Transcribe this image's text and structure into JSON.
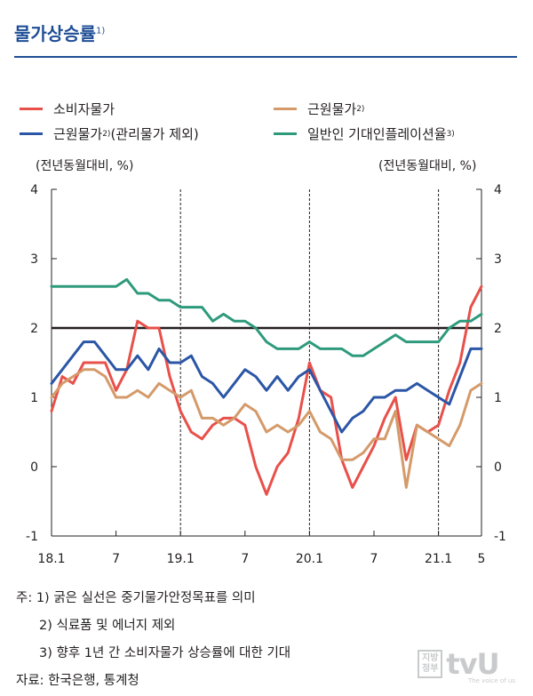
{
  "title": "물가상승률",
  "title_note": "1)",
  "legend": [
    {
      "label": "소비자물가",
      "sup": "",
      "color": "#e8504a"
    },
    {
      "label": "근원물가",
      "sup": "2)",
      "color": "#d49a6a"
    },
    {
      "label": "근원물가",
      "sup": "2)",
      "suffix": "(관리물가 제외)",
      "color": "#2b56a6"
    },
    {
      "label": "일반인 기대인플레이션율",
      "sup": "3)",
      "color": "#2e9a7c"
    }
  ],
  "y_unit_left": "(전년동월대비, %)",
  "y_unit_right": "(전년동월대비, %)",
  "notes": [
    "주: 1) 굵은 실선은 중기물가안정목표를 의미",
    "2) 식료품 및 에너지 제외",
    "3) 향후 1년 간 소비자물가 상승률에 대한 기대",
    "자료: 한국은행, 통계청"
  ],
  "watermark": {
    "box": "지방\n정부",
    "brand": "tvU",
    "tagline": "The voice of us"
  },
  "chart_data": {
    "type": "line",
    "x": [
      "18.1",
      "18.2",
      "18.3",
      "18.4",
      "18.5",
      "18.6",
      "18.7",
      "18.8",
      "18.9",
      "18.10",
      "18.11",
      "18.12",
      "19.1",
      "19.2",
      "19.3",
      "19.4",
      "19.5",
      "19.6",
      "19.7",
      "19.8",
      "19.9",
      "19.10",
      "19.11",
      "19.12",
      "20.1",
      "20.2",
      "20.3",
      "20.4",
      "20.5",
      "20.6",
      "20.7",
      "20.8",
      "20.9",
      "20.10",
      "20.11",
      "20.12",
      "21.1",
      "21.2",
      "21.3",
      "21.4",
      "21.5"
    ],
    "x_tick_labels": [
      {
        "month_index": 0,
        "label": "18.1"
      },
      {
        "month_index": 6,
        "label": "7"
      },
      {
        "month_index": 12,
        "label": "19.1"
      },
      {
        "month_index": 18,
        "label": "7"
      },
      {
        "month_index": 24,
        "label": "20.1"
      },
      {
        "month_index": 30,
        "label": "7"
      },
      {
        "month_index": 36,
        "label": "21.1"
      },
      {
        "month_index": 40,
        "label": "5"
      }
    ],
    "year_dividers": [
      12,
      24,
      36
    ],
    "ylim": [
      -1,
      4
    ],
    "yticks": [
      -1,
      0,
      1,
      2,
      3,
      4
    ],
    "target_line": 2,
    "series": [
      {
        "name": "소비자물가",
        "color": "#e8504a",
        "values": [
          0.8,
          1.3,
          1.2,
          1.5,
          1.5,
          1.5,
          1.1,
          1.4,
          2.1,
          2.0,
          2.0,
          1.3,
          0.8,
          0.5,
          0.4,
          0.6,
          0.7,
          0.7,
          0.6,
          0.0,
          -0.4,
          0.0,
          0.2,
          0.7,
          1.5,
          1.1,
          1.0,
          0.1,
          -0.3,
          0.0,
          0.3,
          0.7,
          1.0,
          0.1,
          0.6,
          0.5,
          0.6,
          1.1,
          1.5,
          2.3,
          2.6
        ]
      },
      {
        "name": "근원물가",
        "color": "#d49a6a",
        "values": [
          1.0,
          1.2,
          1.3,
          1.4,
          1.4,
          1.3,
          1.0,
          1.0,
          1.1,
          1.0,
          1.2,
          1.1,
          1.0,
          1.1,
          0.7,
          0.7,
          0.6,
          0.7,
          0.9,
          0.8,
          0.5,
          0.6,
          0.5,
          0.6,
          0.8,
          0.5,
          0.4,
          0.1,
          0.1,
          0.2,
          0.4,
          0.4,
          0.8,
          -0.3,
          0.6,
          0.5,
          0.4,
          0.3,
          0.6,
          1.1,
          1.2
        ]
      },
      {
        "name": "근원물가(관리물가 제외)",
        "color": "#2b56a6",
        "values": [
          1.2,
          1.4,
          1.6,
          1.8,
          1.8,
          1.6,
          1.4,
          1.4,
          1.6,
          1.4,
          1.7,
          1.5,
          1.5,
          1.6,
          1.3,
          1.2,
          1.0,
          1.2,
          1.4,
          1.3,
          1.1,
          1.3,
          1.1,
          1.3,
          1.4,
          1.1,
          0.8,
          0.5,
          0.7,
          0.8,
          1.0,
          1.0,
          1.1,
          1.1,
          1.2,
          1.1,
          1.0,
          0.9,
          1.3,
          1.7,
          1.7
        ]
      },
      {
        "name": "일반인 기대인플레이션율",
        "color": "#2e9a7c",
        "values": [
          2.6,
          2.6,
          2.6,
          2.6,
          2.6,
          2.6,
          2.6,
          2.7,
          2.5,
          2.5,
          2.4,
          2.4,
          2.3,
          2.3,
          2.3,
          2.1,
          2.2,
          2.1,
          2.1,
          2.0,
          1.8,
          1.7,
          1.7,
          1.7,
          1.8,
          1.7,
          1.7,
          1.7,
          1.6,
          1.6,
          1.7,
          1.8,
          1.9,
          1.8,
          1.8,
          1.8,
          1.8,
          2.0,
          2.1,
          2.1,
          2.2
        ]
      }
    ]
  }
}
